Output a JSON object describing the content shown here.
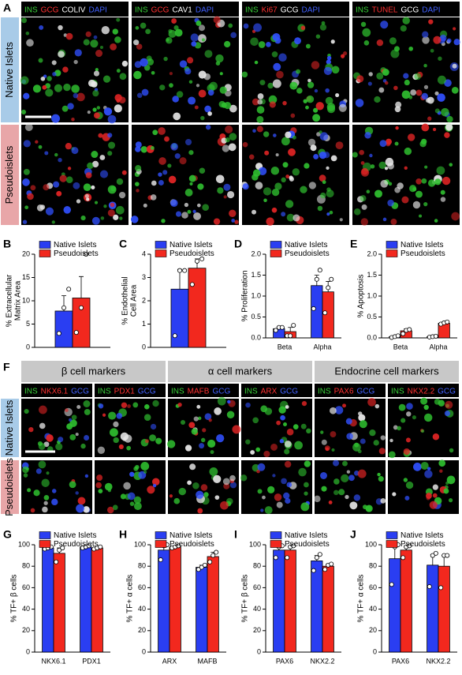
{
  "image_panels": [
    {
      "label": "A",
      "rows": [
        "Native Islets",
        "Pseudoislets"
      ],
      "row_colors": [
        "#a8cbe8",
        "#e8a6a8"
      ],
      "stains": [
        [
          {
            "text": "INS",
            "color": "#38d038"
          },
          {
            "text": "GCG",
            "color": "#ff3030"
          },
          {
            "text": "COLIV",
            "color": "#ffffff"
          },
          {
            "text": "DAPI",
            "color": "#4060ff"
          }
        ],
        [
          {
            "text": "INS",
            "color": "#38d038"
          },
          {
            "text": "GCG",
            "color": "#ff3030"
          },
          {
            "text": "CAV1",
            "color": "#ffffff"
          },
          {
            "text": "DAPI",
            "color": "#4060ff"
          }
        ],
        [
          {
            "text": "INS",
            "color": "#38d038"
          },
          {
            "text": "Ki67",
            "color": "#ff3030"
          },
          {
            "text": "GCG",
            "color": "#ffffff"
          },
          {
            "text": "DAPI",
            "color": "#4060ff"
          }
        ],
        [
          {
            "text": "INS",
            "color": "#38d038"
          },
          {
            "text": "TUNEL",
            "color": "#ff3030"
          },
          {
            "text": "GCG",
            "color": "#ffffff"
          },
          {
            "text": "DAPI",
            "color": "#4060ff"
          }
        ]
      ]
    },
    {
      "label": "F",
      "groups": [
        "β cell markers",
        "α cell markers",
        "Endocrine cell markers"
      ],
      "rows": [
        "Native Islets",
        "Pseudoislets"
      ],
      "row_colors": [
        "#a8cbe8",
        "#e8a6a8"
      ],
      "stains": [
        [
          {
            "text": "INS",
            "color": "#38d038"
          },
          {
            "text": "NKX6.1",
            "color": "#ff3030"
          },
          {
            "text": "GCG",
            "color": "#4060ff"
          }
        ],
        [
          {
            "text": "INS",
            "color": "#38d038"
          },
          {
            "text": "PDX1",
            "color": "#ff3030"
          },
          {
            "text": "GCG",
            "color": "#4060ff"
          }
        ],
        [
          {
            "text": "INS",
            "color": "#38d038"
          },
          {
            "text": "MAFB",
            "color": "#ff3030"
          },
          {
            "text": "GCG",
            "color": "#4060ff"
          }
        ],
        [
          {
            "text": "INS",
            "color": "#38d038"
          },
          {
            "text": "ARX",
            "color": "#ff3030"
          },
          {
            "text": "GCG",
            "color": "#4060ff"
          }
        ],
        [
          {
            "text": "INS",
            "color": "#38d038"
          },
          {
            "text": "PAX6",
            "color": "#ff3030"
          },
          {
            "text": "GCG",
            "color": "#4060ff"
          }
        ],
        [
          {
            "text": "INS",
            "color": "#38d038"
          },
          {
            "text": "NKX2.2",
            "color": "#ff3030"
          },
          {
            "text": "GCG",
            "color": "#4060ff"
          }
        ]
      ]
    }
  ],
  "chart_data": [
    {
      "type": "bar",
      "panel_label": "B",
      "ylabel": [
        "% Extracellular",
        "Matrix Area"
      ],
      "categories": [
        null
      ],
      "ylim": [
        0,
        20
      ],
      "yticks": [
        0,
        5,
        10,
        15,
        20
      ],
      "series": [
        {
          "name": "Native Islets",
          "color": "#2a3ef2",
          "values": [
            7.8
          ],
          "errors": [
            3.3
          ],
          "points": [
            [
              3,
              8.5,
              12.5
            ]
          ]
        },
        {
          "name": "Pseudoislets",
          "color": "#f2281e",
          "values": [
            10.6
          ],
          "errors": [
            4.6
          ],
          "points": [
            [
              3.2,
              8.5,
              20
            ]
          ]
        }
      ]
    },
    {
      "type": "bar",
      "panel_label": "C",
      "ylabel": [
        "% Endothelial",
        "Cell Area"
      ],
      "categories": [
        null
      ],
      "ylim": [
        0,
        4
      ],
      "yticks": [
        0,
        1,
        2,
        3,
        4
      ],
      "series": [
        {
          "name": "Native Islets",
          "color": "#2a3ef2",
          "values": [
            2.5
          ],
          "errors": [
            0.85
          ],
          "points": [
            [
              0.5,
              3.3,
              3.3
            ]
          ]
        },
        {
          "name": "Pseudoislets",
          "color": "#f2281e",
          "values": [
            3.4
          ],
          "errors": [
            0.4
          ],
          "points": [
            [
              2.7,
              3.7,
              3.8
            ]
          ]
        }
      ]
    },
    {
      "type": "bar",
      "panel_label": "D",
      "ylabel": [
        "% Proliferation"
      ],
      "categories": [
        "Beta",
        "Alpha"
      ],
      "ylim": [
        0,
        2
      ],
      "yticks": [
        {
          "value": 0,
          "label": "0.0"
        },
        0.5,
        {
          "value": 1,
          "label": "1.0"
        },
        1.5,
        {
          "value": 2,
          "label": "2.0"
        }
      ],
      "series": [
        {
          "name": "Native Islets",
          "color": "#2a3ef2",
          "values": [
            0.22,
            1.25
          ],
          "errors": [
            0.04,
            0.25
          ],
          "points": [
            [
              0.18,
              0.25,
              0.25
            ],
            [
              0.7,
              1.4,
              1.62
            ]
          ]
        },
        {
          "name": "Pseudoislets",
          "color": "#f2281e",
          "values": [
            0.15,
            1.1
          ],
          "errors": [
            0.1,
            0.25
          ],
          "points": [
            [
              0.05,
              0.05,
              0.3
            ],
            [
              0.6,
              1.2,
              1.4
            ]
          ]
        }
      ]
    },
    {
      "type": "bar",
      "panel_label": "E",
      "ylabel": [
        "% Apoptosis"
      ],
      "categories": [
        "Beta",
        "Alpha"
      ],
      "ylim": [
        0,
        2
      ],
      "yticks": [
        {
          "value": 0,
          "label": "0.0"
        },
        0.5,
        {
          "value": 1,
          "label": "1.0"
        },
        1.5,
        {
          "value": 2,
          "label": "2.0"
        }
      ],
      "series": [
        {
          "name": "Native Islets",
          "color": "#2a3ef2",
          "values": [
            0.03,
            0.03
          ],
          "errors": [
            0.01,
            0.01
          ],
          "points": [
            [
              0.01,
              0.03,
              0.05
            ],
            [
              0.02,
              0.03,
              0.04
            ]
          ]
        },
        {
          "name": "Pseudoislets",
          "color": "#f2281e",
          "values": [
            0.17,
            0.35
          ],
          "errors": [
            0.05,
            0.03
          ],
          "points": [
            [
              0.1,
              0.18,
              0.2
            ],
            [
              0.33,
              0.36,
              0.38
            ]
          ]
        }
      ]
    },
    {
      "type": "bar",
      "panel_label": "G",
      "ylabel": [
        "% TF+ β cells"
      ],
      "categories": [
        "NKX6.1",
        "PDX1"
      ],
      "ylim": [
        0,
        100
      ],
      "yticks": [
        0,
        20,
        40,
        60,
        80,
        100
      ],
      "series": [
        {
          "name": "Native Islets",
          "color": "#2a3ef2",
          "values": [
            97,
            98
          ],
          "errors": [
            1,
            1
          ],
          "points": [
            [
              96,
              97,
              98
            ],
            [
              97,
              98,
              99
            ]
          ]
        },
        {
          "name": "Pseudoislets",
          "color": "#f2281e",
          "values": [
            92,
            97
          ],
          "errors": [
            5,
            1
          ],
          "points": [
            [
              84,
              95,
              97
            ],
            [
              96,
              97,
              98
            ]
          ]
        }
      ]
    },
    {
      "type": "bar",
      "panel_label": "H",
      "ylabel": [
        "% TF+ α cells"
      ],
      "categories": [
        "ARX",
        "MAFB"
      ],
      "ylim": [
        0,
        100
      ],
      "yticks": [
        0,
        20,
        40,
        60,
        80,
        100
      ],
      "series": [
        {
          "name": "Native Islets",
          "color": "#2a3ef2",
          "values": [
            95,
            79
          ],
          "errors": [
            5,
            2
          ],
          "points": [
            [
              86,
              99,
              100
            ],
            [
              77,
              79,
              81
            ]
          ]
        },
        {
          "name": "Pseudoislets",
          "color": "#f2281e",
          "values": [
            98,
            89
          ],
          "errors": [
            1,
            4
          ],
          "points": [
            [
              97,
              98,
              99
            ],
            [
              84,
              90,
              93
            ]
          ]
        }
      ]
    },
    {
      "type": "bar",
      "panel_label": "I",
      "ylabel": [
        "% TF+ β cells"
      ],
      "categories": [
        "PAX6",
        "NKX2.2"
      ],
      "ylim": [
        0,
        100
      ],
      "yticks": [
        0,
        20,
        40,
        60,
        80,
        100
      ],
      "series": [
        {
          "name": "Native Islets",
          "color": "#2a3ef2",
          "values": [
            95,
            85
          ],
          "errors": [
            4,
            5
          ],
          "points": [
            [
              88,
              98,
              99
            ],
            [
              76,
              88,
              91
            ]
          ]
        },
        {
          "name": "Pseudoislets",
          "color": "#f2281e",
          "values": [
            95,
            80
          ],
          "errors": [
            4,
            2
          ],
          "points": [
            [
              88,
              98,
              99
            ],
            [
              77,
              81,
              82
            ]
          ]
        }
      ]
    },
    {
      "type": "bar",
      "panel_label": "J",
      "ylabel": [
        "% TF+ α cells"
      ],
      "categories": [
        "PAX6",
        "NKX2.2"
      ],
      "ylim": [
        0,
        100
      ],
      "yticks": [
        0,
        20,
        40,
        60,
        80,
        100
      ],
      "series": [
        {
          "name": "Native Islets",
          "color": "#2a3ef2",
          "values": [
            87,
            81
          ],
          "errors": [
            12,
            10
          ],
          "points": [
            [
              63,
              98,
              100
            ],
            [
              61,
              90,
              92
            ]
          ]
        },
        {
          "name": "Pseudoislets",
          "color": "#f2281e",
          "values": [
            95,
            80
          ],
          "errors": [
            4,
            10
          ],
          "points": [
            [
              88,
              98,
              99
            ],
            [
              60,
              90,
              90
            ]
          ]
        }
      ]
    }
  ]
}
